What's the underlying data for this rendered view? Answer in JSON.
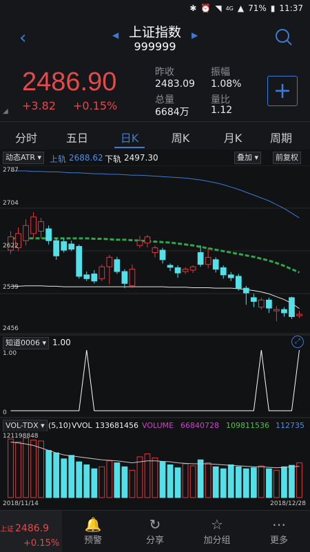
{
  "status": {
    "battery": "71%",
    "time": "11:37",
    "net": "4G"
  },
  "header": {
    "title": "上证指数",
    "code": "999999"
  },
  "quote": {
    "price": "2486.90",
    "change": "+3.82",
    "change_pct": "+0.15%",
    "prev_close_label": "昨收",
    "prev_close": "2483.09",
    "amplitude_label": "振幅",
    "amplitude": "1.08%",
    "volume_label": "总量",
    "volume": "6684万",
    "vol_ratio_label": "量比",
    "vol_ratio": "1.12"
  },
  "tabs": [
    "分时",
    "五日",
    "日K",
    "周K",
    "月K",
    "周期"
  ],
  "chart_toolbar": {
    "indicator": "动态ATR",
    "upper_label": "上轨",
    "upper_value": "2688.62",
    "lower_label": "下轨",
    "lower_value": "2497.30",
    "overlay_button": "叠加",
    "adjust_button": "前复权"
  },
  "price_axis": {
    "labels": [
      "2787",
      "2704",
      "2622",
      "2539",
      "2456"
    ],
    "range": [
      2456,
      2787
    ]
  },
  "indicator2": {
    "name": "知道0006",
    "value": "1.00",
    "axis_top": "1.00",
    "axis_bottom": "0"
  },
  "volume": {
    "name": "VOL-TDX",
    "params": "(5,10)",
    "vvol_label": "VVOL",
    "vvol": "133681456",
    "volume_label": "VOLUME",
    "volume": "66840728",
    "ma5": "109811536",
    "ma10": "112735",
    "axis_top": "121198848"
  },
  "dates": {
    "start": "2018/11/14",
    "end": "2018/12/28"
  },
  "bottom_nav": {
    "price": "2486.9",
    "change_pct": "+0.15%",
    "items": [
      "预警",
      "分享",
      "加分组",
      "更多"
    ]
  },
  "chart_data": {
    "type": "candlestick",
    "y_range": [
      2456,
      2787
    ],
    "candles": [
      {
        "o": 2620,
        "c": 2648,
        "h": 2660,
        "l": 2612,
        "up": true
      },
      {
        "o": 2625,
        "c": 2655,
        "h": 2668,
        "l": 2618,
        "up": true
      },
      {
        "o": 2640,
        "c": 2672,
        "h": 2685,
        "l": 2630,
        "up": true
      },
      {
        "o": 2655,
        "c": 2690,
        "h": 2700,
        "l": 2645,
        "up": true
      },
      {
        "o": 2660,
        "c": 2680,
        "h": 2688,
        "l": 2645,
        "up": true
      },
      {
        "o": 2665,
        "c": 2640,
        "h": 2672,
        "l": 2632,
        "up": false
      },
      {
        "o": 2640,
        "c": 2608,
        "h": 2645,
        "l": 2600,
        "up": false
      },
      {
        "o": 2638,
        "c": 2620,
        "h": 2645,
        "l": 2615,
        "up": false
      },
      {
        "o": 2633,
        "c": 2622,
        "h": 2640,
        "l": 2618,
        "up": false
      },
      {
        "o": 2628,
        "c": 2565,
        "h": 2632,
        "l": 2560,
        "up": false
      },
      {
        "o": 2568,
        "c": 2560,
        "h": 2575,
        "l": 2555,
        "up": false
      },
      {
        "o": 2570,
        "c": 2555,
        "h": 2578,
        "l": 2550,
        "up": false
      },
      {
        "o": 2560,
        "c": 2585,
        "h": 2590,
        "l": 2555,
        "up": true
      },
      {
        "o": 2585,
        "c": 2605,
        "h": 2610,
        "l": 2548,
        "up": true
      },
      {
        "o": 2600,
        "c": 2575,
        "h": 2606,
        "l": 2570,
        "up": false
      },
      {
        "o": 2575,
        "c": 2550,
        "h": 2580,
        "l": 2540,
        "up": false
      },
      {
        "o": 2545,
        "c": 2580,
        "h": 2590,
        "l": 2540,
        "up": true
      },
      {
        "o": 2630,
        "c": 2640,
        "h": 2650,
        "l": 2624,
        "up": true
      },
      {
        "o": 2635,
        "c": 2648,
        "h": 2652,
        "l": 2626,
        "up": true
      },
      {
        "o": 2625,
        "c": 2615,
        "h": 2630,
        "l": 2605,
        "up": true
      },
      {
        "o": 2620,
        "c": 2600,
        "h": 2625,
        "l": 2592,
        "up": false
      },
      {
        "o": 2588,
        "c": 2584,
        "h": 2592,
        "l": 2576,
        "up": false
      },
      {
        "o": 2583,
        "c": 2572,
        "h": 2588,
        "l": 2562,
        "up": false
      },
      {
        "o": 2575,
        "c": 2580,
        "h": 2584,
        "l": 2570,
        "up": true
      },
      {
        "o": 2578,
        "c": 2585,
        "h": 2588,
        "l": 2572,
        "up": true
      },
      {
        "o": 2615,
        "c": 2590,
        "h": 2630,
        "l": 2585,
        "up": false
      },
      {
        "o": 2590,
        "c": 2605,
        "h": 2625,
        "l": 2582,
        "up": true
      },
      {
        "o": 2600,
        "c": 2580,
        "h": 2605,
        "l": 2573,
        "up": false
      },
      {
        "o": 2583,
        "c": 2568,
        "h": 2588,
        "l": 2560,
        "up": false
      },
      {
        "o": 2568,
        "c": 2562,
        "h": 2574,
        "l": 2555,
        "up": false
      },
      {
        "o": 2565,
        "c": 2540,
        "h": 2570,
        "l": 2535,
        "up": false
      },
      {
        "o": 2540,
        "c": 2530,
        "h": 2545,
        "l": 2505,
        "up": false
      },
      {
        "o": 2520,
        "c": 2512,
        "h": 2528,
        "l": 2500,
        "up": false
      },
      {
        "o": 2500,
        "c": 2515,
        "h": 2520,
        "l": 2495,
        "up": true
      },
      {
        "o": 2515,
        "c": 2498,
        "h": 2520,
        "l": 2488,
        "up": false
      },
      {
        "o": 2495,
        "c": 2492,
        "h": 2502,
        "l": 2470,
        "up": true
      },
      {
        "o": 2495,
        "c": 2488,
        "h": 2500,
        "l": 2480,
        "up": false
      },
      {
        "o": 2520,
        "c": 2480,
        "h": 2522,
        "l": 2475,
        "up": false
      },
      {
        "o": 2482,
        "c": 2485,
        "h": 2492,
        "l": 2478,
        "up": true
      }
    ],
    "upper_band": [
      2787,
      2787,
      2787,
      2786,
      2786,
      2785,
      2785,
      2784,
      2783,
      2783,
      2782,
      2781,
      2781,
      2780,
      2780,
      2779,
      2778,
      2778,
      2777,
      2776,
      2775,
      2774,
      2773,
      2772,
      2770,
      2768,
      2765,
      2762,
      2758,
      2753,
      2748,
      2742,
      2736,
      2730,
      2724,
      2716,
      2708,
      2698,
      2688
    ],
    "lower_band": [
      2544,
      2544,
      2545,
      2545,
      2545,
      2544,
      2544,
      2543,
      2543,
      2543,
      2543,
      2543,
      2543,
      2543,
      2543,
      2543,
      2543,
      2543,
      2543,
      2543,
      2543,
      2542,
      2542,
      2542,
      2541,
      2541,
      2541,
      2540,
      2540,
      2540,
      2539,
      2537,
      2535,
      2532,
      2528,
      2522,
      2516,
      2508,
      2497
    ],
    "mid_line": [
      2645,
      2645,
      2645,
      2645,
      2645,
      2645,
      2645,
      2645,
      2645,
      2645,
      2645,
      2644,
      2644,
      2643,
      2642,
      2642,
      2641,
      2640,
      2639,
      2638,
      2637,
      2636,
      2634,
      2632,
      2630,
      2627,
      2624,
      2621,
      2618,
      2615,
      2612,
      2609,
      2606,
      2602,
      2598,
      2593,
      2587,
      2580,
      2573
    ],
    "indicator_spikes": [
      10,
      33,
      38
    ],
    "volumes": [
      118,
      112,
      120,
      116,
      114,
      95,
      90,
      78,
      85,
      72,
      66,
      58,
      62,
      74,
      70,
      62,
      55,
      82,
      88,
      80,
      72,
      66,
      60,
      68,
      64,
      76,
      70,
      62,
      58,
      66,
      62,
      58,
      60,
      64,
      58,
      55,
      62,
      65,
      70
    ],
    "vol_ma": [
      112,
      110,
      108,
      105,
      100,
      95,
      90,
      86,
      84,
      82,
      80,
      78,
      76,
      75,
      74,
      72,
      70,
      72,
      74,
      74,
      73,
      72,
      70,
      69,
      68,
      68,
      68,
      67,
      66,
      65,
      64,
      63,
      62,
      62,
      61,
      60,
      61,
      62,
      63
    ]
  }
}
